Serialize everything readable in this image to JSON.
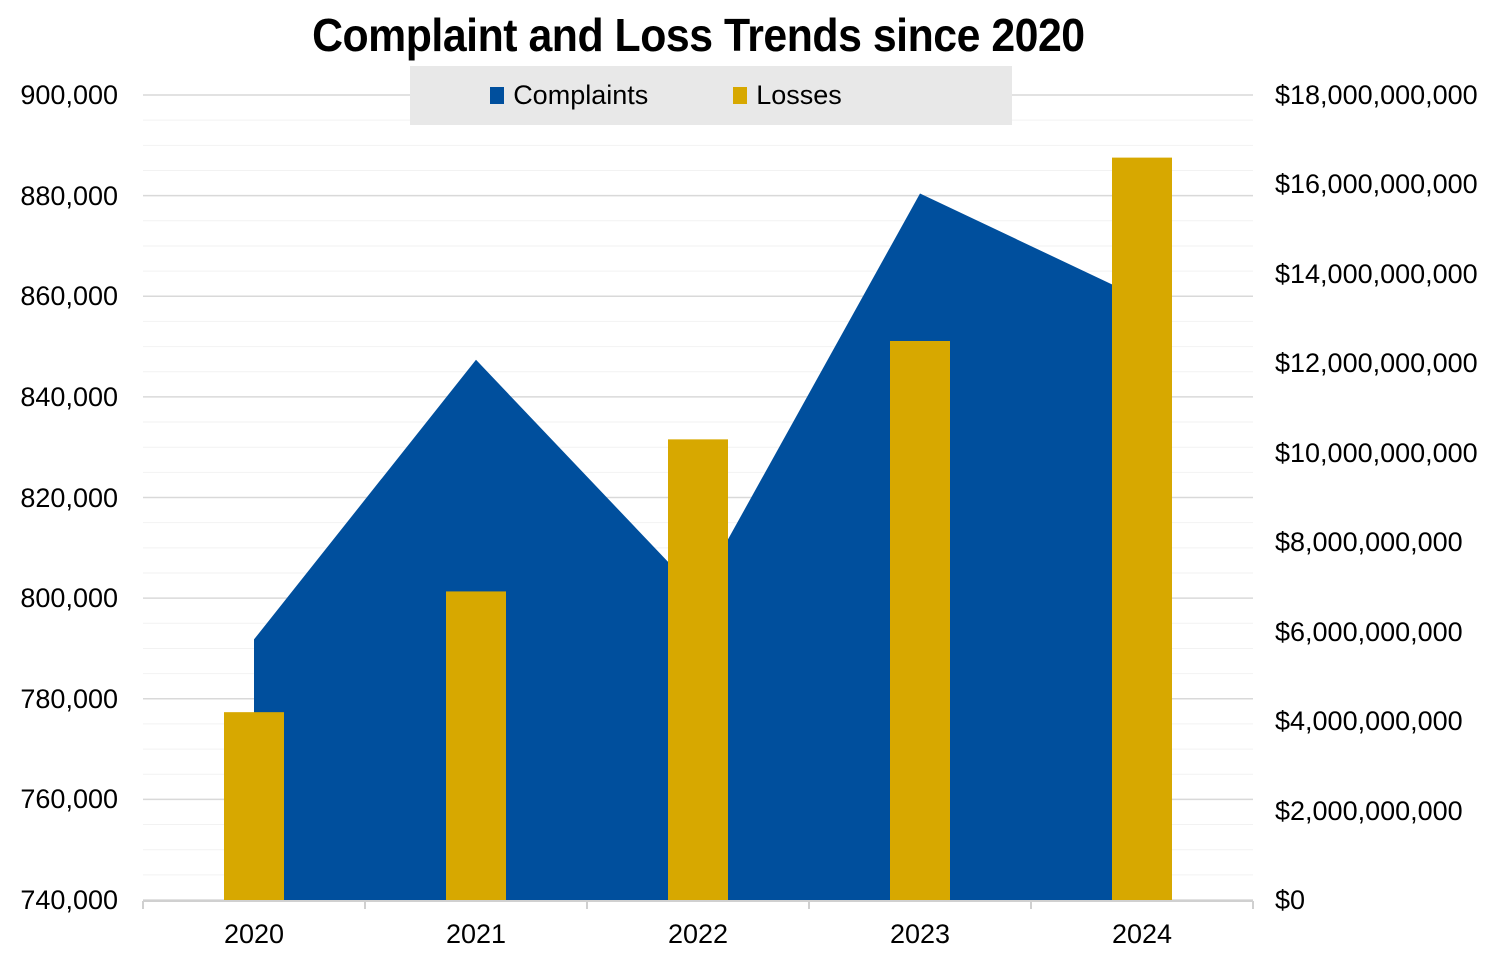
{
  "page": {
    "background": "#FFFFFF"
  },
  "chart_data": {
    "type": "combo-area-bar",
    "title": "Complaint and Loss Trends since 2020",
    "categories": [
      "2020",
      "2021",
      "2022",
      "2023",
      "2024"
    ],
    "series": [
      {
        "name": "Complaints",
        "chart_type": "area",
        "axis": "left",
        "color": "#004F9D",
        "values": [
          791790,
          847376,
          800944,
          880418,
          859532
        ]
      },
      {
        "name": "Losses",
        "chart_type": "column",
        "axis": "right",
        "color": "#D7A800",
        "values": [
          4200000000,
          6900000000,
          10300000000,
          12500000000,
          16600000000
        ]
      }
    ],
    "left_axis": {
      "min": 740000,
      "max": 900000,
      "major_step": 20000,
      "minor_step": 5000,
      "ticks": [
        {
          "value": 740000,
          "label": "740,000"
        },
        {
          "value": 760000,
          "label": "760,000"
        },
        {
          "value": 780000,
          "label": "780,000"
        },
        {
          "value": 800000,
          "label": "800,000"
        },
        {
          "value": 820000,
          "label": "820,000"
        },
        {
          "value": 840000,
          "label": "840,000"
        },
        {
          "value": 860000,
          "label": "860,000"
        },
        {
          "value": 880000,
          "label": "880,000"
        },
        {
          "value": 900000,
          "label": "900,000"
        }
      ]
    },
    "right_axis": {
      "min": 0,
      "max": 18000000000,
      "major_step": 2000000000,
      "ticks": [
        {
          "value": 0,
          "label": "$0"
        },
        {
          "value": 2000000000,
          "label": "$2,000,000,000"
        },
        {
          "value": 4000000000,
          "label": "$4,000,000,000"
        },
        {
          "value": 6000000000,
          "label": "$6,000,000,000"
        },
        {
          "value": 8000000000,
          "label": "$8,000,000,000"
        },
        {
          "value": 10000000000,
          "label": "$10,000,000,000"
        },
        {
          "value": 12000000000,
          "label": "$12,000,000,000"
        },
        {
          "value": 14000000000,
          "label": "$14,000,000,000"
        },
        {
          "value": 16000000000,
          "label": "$16,000,000,000"
        },
        {
          "value": 18000000000,
          "label": "$18,000,000,000"
        }
      ]
    },
    "legend": {
      "position": "top",
      "entries": [
        "Complaints",
        "Losses"
      ]
    },
    "grid": {
      "major": true,
      "minor": true,
      "orientation": "horizontal"
    }
  },
  "colors": {
    "major_grid": "#D9D9D9",
    "minor_grid": "#F2F2F2",
    "axis_line": "#D0D0D0",
    "legend_bg": "#E8E8E8",
    "text": "#000000"
  }
}
